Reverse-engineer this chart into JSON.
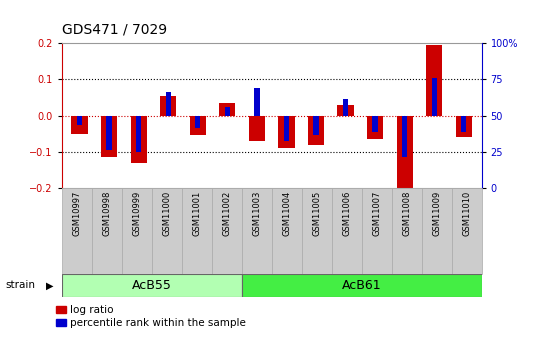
{
  "title": "GDS471 / 7029",
  "samples": [
    "GSM10997",
    "GSM10998",
    "GSM10999",
    "GSM11000",
    "GSM11001",
    "GSM11002",
    "GSM11003",
    "GSM11004",
    "GSM11005",
    "GSM11006",
    "GSM11007",
    "GSM11008",
    "GSM11009",
    "GSM11010"
  ],
  "log_ratio": [
    -0.05,
    -0.115,
    -0.13,
    0.055,
    -0.055,
    0.035,
    -0.07,
    -0.09,
    -0.08,
    0.03,
    -0.065,
    -0.22,
    0.195,
    -0.06
  ],
  "percentile_rank_lr": [
    -0.025,
    -0.095,
    -0.1,
    0.065,
    -0.035,
    0.025,
    0.075,
    -0.07,
    -0.055,
    0.045,
    -0.045,
    -0.115,
    0.105,
    -0.045
  ],
  "groups": [
    {
      "label": "AcB55",
      "start": 0,
      "end": 5,
      "color": "#b2ffb2"
    },
    {
      "label": "AcB61",
      "start": 6,
      "end": 13,
      "color": "#44ee44"
    }
  ],
  "ylim": [
    -0.2,
    0.2
  ],
  "yticks": [
    -0.2,
    -0.1,
    0.0,
    0.1,
    0.2
  ],
  "y2tick_labels": [
    "0",
    "25",
    "50",
    "75",
    "100%"
  ],
  "right_axis_color": "#0000cc",
  "left_axis_color": "#cc0000",
  "bar_color_red": "#cc0000",
  "bar_color_blue": "#0000cc",
  "grid_color": "#000000",
  "zero_line_color": "#cc0000",
  "bg_color": "#ffffff",
  "red_bar_width": 0.55,
  "blue_bar_width": 0.18,
  "group_label_fontsize": 9,
  "tick_fontsize": 7,
  "title_fontsize": 10,
  "legend_red_label": "log ratio",
  "legend_blue_label": "percentile rank within the sample"
}
